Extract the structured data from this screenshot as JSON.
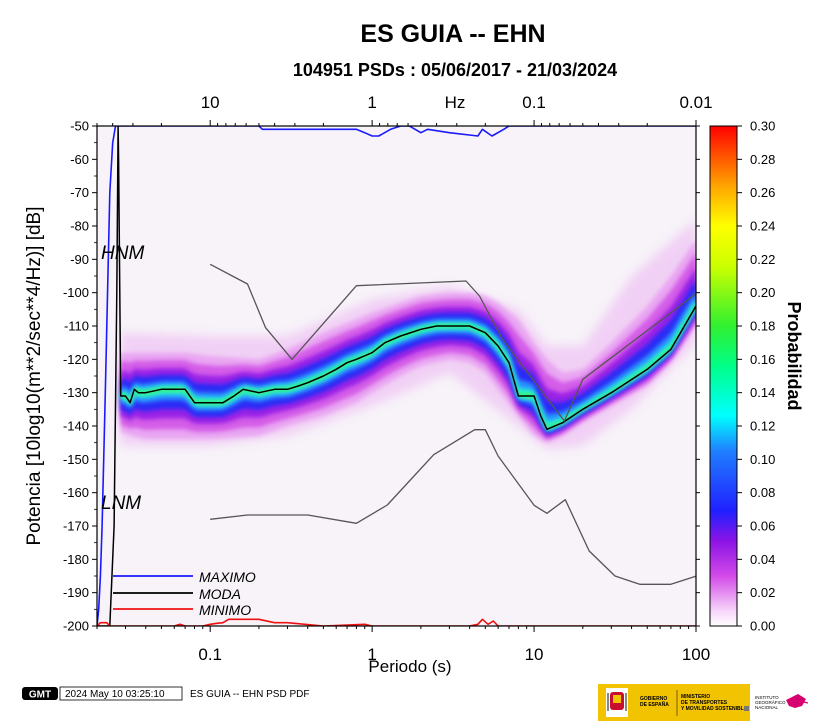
{
  "chart_data": {
    "type": "heatmap",
    "title": "ES GUIA -- EHN",
    "subtitle": "104951 PSDs : 05/06/2017 - 21/03/2024",
    "xlabel": "Periodo (s)",
    "ylabel": "Potencia [10log10(m**2/sec**4/Hz)] [dB]",
    "xscale": "log",
    "xlim": [
      0.02,
      100
    ],
    "ylim": [
      -200,
      -50
    ],
    "x_ticks": [
      0.1,
      1,
      10,
      100
    ],
    "x_tick_labels": [
      "0.1",
      "1",
      "10",
      "100"
    ],
    "y_ticks": [
      -200,
      -190,
      -180,
      -170,
      -160,
      -150,
      -140,
      -130,
      -120,
      -110,
      -100,
      -90,
      -80,
      -70,
      -60,
      -50
    ],
    "y_tick_labels": [
      "-200",
      "-190",
      "-180",
      "-170",
      "-160",
      "-150",
      "-140",
      "-130",
      "-120",
      "-110",
      "-100",
      "-90",
      "-80",
      "-70",
      "-60",
      "-50"
    ],
    "top_axis": {
      "label": "Hz",
      "ticks": [
        10,
        1,
        0.1,
        0.01
      ],
      "tick_labels": [
        "10",
        "1",
        "0.1",
        "0.01"
      ]
    },
    "colorbar": {
      "label": "Probabilidad",
      "range": [
        0,
        0.3
      ],
      "ticks": [
        0,
        0.02,
        0.04,
        0.06,
        0.08,
        0.1,
        0.12,
        0.14,
        0.16,
        0.18,
        0.2,
        0.22,
        0.24,
        0.26,
        0.28,
        0.3
      ],
      "tick_labels": [
        "0.00",
        "0.02",
        "0.04",
        "0.06",
        "0.08",
        "0.10",
        "0.12",
        "0.14",
        "0.16",
        "0.18",
        "0.20",
        "0.22",
        "0.24",
        "0.26",
        "0.28",
        "0.30"
      ]
    },
    "model_labels": {
      "hnm": "HNM",
      "lnm": "LNM"
    },
    "series": [
      {
        "name": "MAXIMO",
        "color": "#1a1aff",
        "x": [
          0.02,
          0.0205,
          0.021,
          0.0215,
          0.022,
          0.0225,
          0.023,
          0.0235,
          0.024,
          0.025,
          0.026,
          0.028,
          0.03,
          0.05,
          0.1,
          0.2,
          0.21,
          0.5,
          0.8,
          0.9,
          1.0,
          1.1,
          1.3,
          1.5,
          1.7,
          2.0,
          2.2,
          3.0,
          4.5,
          4.8,
          5.5,
          6.5,
          7.0,
          8.0,
          100
        ],
        "y": [
          -200,
          -195,
          -185,
          -170,
          -150,
          -130,
          -110,
          -90,
          -70,
          -55,
          -50,
          -50,
          -50,
          -50,
          -50,
          -50,
          -51,
          -51,
          -51,
          -52,
          -53,
          -53,
          -51,
          -50,
          -50,
          -52,
          -51,
          -52,
          -53,
          -51,
          -53,
          -51,
          -50,
          -50,
          -50
        ]
      },
      {
        "name": "MODA",
        "color": "#000000",
        "x": [
          0.02,
          0.022,
          0.024,
          0.0255,
          0.0265,
          0.027,
          0.0272,
          0.028,
          0.03,
          0.032,
          0.034,
          0.036,
          0.04,
          0.05,
          0.06,
          0.07,
          0.08,
          0.1,
          0.12,
          0.14,
          0.16,
          0.2,
          0.25,
          0.3,
          0.35,
          0.4,
          0.5,
          0.6,
          0.7,
          0.8,
          1.0,
          1.2,
          1.5,
          2.0,
          2.5,
          3.0,
          4.0,
          5.0,
          6.0,
          7.0,
          8.0,
          10.0,
          11.0,
          12.0,
          15.0,
          20.0,
          30.0,
          50.0,
          70.0,
          100.0
        ],
        "y": [
          -200,
          -200,
          -200,
          -170,
          -100,
          -50,
          -60,
          -131,
          -131,
          -133,
          -129,
          -130,
          -130,
          -129,
          -129,
          -129,
          -133,
          -133,
          -133,
          -131,
          -129,
          -130,
          -129,
          -129,
          -128,
          -127,
          -125,
          -123,
          -121,
          -120,
          -118,
          -115,
          -113,
          -111,
          -110,
          -110,
          -110,
          -112,
          -116,
          -121,
          -131,
          -131,
          -137,
          -141,
          -139,
          -135,
          -130,
          -123,
          -117,
          -104
        ]
      },
      {
        "name": "MINIMO",
        "color": "#ee1111",
        "x": [
          0.02,
          0.021,
          0.022,
          0.023,
          0.024,
          0.025,
          0.03,
          0.05,
          0.06,
          0.065,
          0.07,
          0.08,
          0.09,
          0.1,
          0.11,
          0.12,
          0.13,
          0.2,
          0.25,
          0.3,
          0.5,
          0.9,
          1.0,
          2.0,
          4.0,
          4.5,
          4.8,
          5.2,
          5.6,
          6.0,
          7.0,
          100
        ],
        "y": [
          -200,
          -199,
          -199,
          -199,
          -200,
          -200,
          -200,
          -200,
          -200,
          -199.5,
          -200,
          -200,
          -200,
          -199.5,
          -199.2,
          -199,
          -198,
          -198,
          -199,
          -199,
          -200,
          -199.5,
          -200,
          -200,
          -200,
          -199.5,
          -198,
          -199.5,
          -198.5,
          -200,
          -200,
          -200
        ]
      },
      {
        "name": "NHNM",
        "color": "#555555",
        "x": [
          0.1,
          0.17,
          0.22,
          0.32,
          0.8,
          3.8,
          4.6,
          6.3,
          7.9,
          15.4,
          20.0,
          354.8
        ],
        "y": [
          -91.5,
          -97.4,
          -110.5,
          -120.0,
          -97.9,
          -96.5,
          -101.0,
          -113.5,
          -120.0,
          -138.5,
          -126.0,
          -80.1
        ]
      },
      {
        "name": "NLNM",
        "color": "#555555",
        "x": [
          0.1,
          0.17,
          0.4,
          0.8,
          1.24,
          2.4,
          4.3,
          5.0,
          6.0,
          10.0,
          12.0,
          15.6,
          21.9,
          31.6,
          45.0,
          70.0,
          101.0
        ],
        "y": [
          -168.0,
          -166.7,
          -166.7,
          -169.2,
          -163.7,
          -148.6,
          -141.1,
          -141.1,
          -149.0,
          -163.8,
          -166.2,
          -162.1,
          -177.5,
          -185.0,
          -187.5,
          -187.5,
          -185.0
        ]
      }
    ],
    "density": {
      "mode_ridge": "MODA",
      "upper_edge_x": [
        0.028,
        0.04,
        0.07,
        0.1,
        0.2,
        0.3,
        0.5,
        0.8,
        1.0,
        1.5,
        2.0,
        3.0,
        4.0,
        5.0,
        6.0,
        8.0,
        10.0,
        12.0,
        15.0,
        20.0,
        30.0,
        50.0,
        70.0,
        100.0
      ],
      "upper_edge_y": [
        -118,
        -118,
        -118,
        -119,
        -120,
        -117,
        -112,
        -108,
        -106,
        -103,
        -101,
        -100,
        -100,
        -101,
        -103,
        -108,
        -115,
        -120,
        -124,
        -123,
        -115,
        -104,
        -95,
        -84
      ],
      "lower_edge_x": [
        0.028,
        0.04,
        0.07,
        0.1,
        0.2,
        0.3,
        0.5,
        0.8,
        1.0,
        1.5,
        2.0,
        3.0,
        4.0,
        5.0,
        6.0,
        8.0,
        10.0,
        12.0,
        15.0,
        20.0,
        30.0,
        50.0,
        70.0,
        100.0
      ],
      "lower_edge_y": [
        -142,
        -144,
        -144,
        -144,
        -143,
        -140,
        -137,
        -133,
        -130,
        -125,
        -122,
        -120,
        -121,
        -124,
        -129,
        -137,
        -143,
        -145,
        -143,
        -139,
        -134,
        -128,
        -121,
        -110
      ]
    },
    "grid": false,
    "legend_position": "bottom-left"
  },
  "footer": {
    "logo_text": "GMT",
    "timestamp": "2024 May 10 03:25:10",
    "caption": "ES GUIA -- EHN PSD PDF"
  },
  "logos": {
    "gov_line1": "GOBIERNO",
    "gov_line2": "DE ESPAÑA",
    "ministry_line1": "MINISTERIO",
    "ministry_line2": "DE TRANSPORTES",
    "ministry_line3": "Y MOVILIDAD SOSTENIBLE",
    "ign_line1": "INSTITUTO",
    "ign_line2": "GEOGRÁFICO",
    "ign_line3": "NACIONAL",
    "colors": {
      "gov_band": "#f2c300",
      "seal_red": "#c8102e",
      "ign_magenta": "#d6006e"
    }
  }
}
